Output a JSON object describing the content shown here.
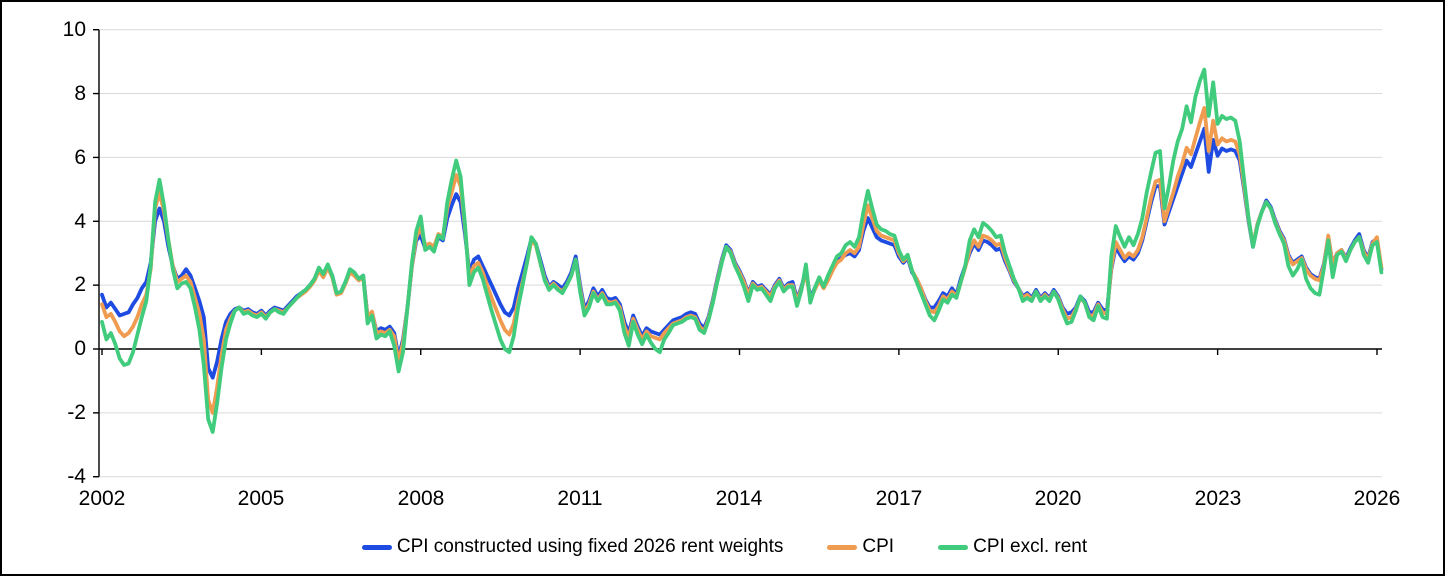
{
  "chart_data": {
    "type": "line",
    "title": "",
    "xlabel": "",
    "ylabel": "",
    "ylim": [
      -4,
      10
    ],
    "xlim": [
      2002,
      2026.4
    ],
    "grid": "horizontal-only",
    "grid_color": "#D9D9D9",
    "zero_axis_color": "#000000",
    "background": "#FFFFFF",
    "legend_position": "bottom-center",
    "ytick_labels": [
      "10",
      "8",
      "6",
      "4",
      "2",
      "0",
      "-2",
      "-4"
    ],
    "ytick_values": [
      10,
      8,
      6,
      4,
      2,
      0,
      -2,
      -4
    ],
    "xtick_labels": [
      "2002",
      "2005",
      "2008",
      "2011",
      "2014",
      "2017",
      "2020",
      "2023",
      "2026"
    ],
    "xtick_values": [
      2002,
      2005,
      2008,
      2011,
      2014,
      2017,
      2020,
      2023,
      2026
    ],
    "x_first": 2002.0,
    "x_step_years": 0.08333,
    "x_unit": "monthly, Jan 2002 - Feb 2026, percent year-over-year",
    "series": [
      {
        "name": "CPI constructed using fixed 2026 rent weights",
        "color": "#1E4BE1",
        "values": [
          1.7,
          1.3,
          1.45,
          1.25,
          1.05,
          1.1,
          1.15,
          1.4,
          1.6,
          1.9,
          2.1,
          2.7,
          4.0,
          4.4,
          4.0,
          3.2,
          2.6,
          2.2,
          2.3,
          2.5,
          2.3,
          1.9,
          1.5,
          1.0,
          -0.6,
          -0.9,
          -0.4,
          0.3,
          0.85,
          1.1,
          1.25,
          1.3,
          1.2,
          1.25,
          1.15,
          1.1,
          1.2,
          1.05,
          1.2,
          1.3,
          1.25,
          1.2,
          1.35,
          1.5,
          1.65,
          1.75,
          1.85,
          2.0,
          2.2,
          2.5,
          2.3,
          2.6,
          2.3,
          1.75,
          1.8,
          2.1,
          2.45,
          2.35,
          2.2,
          2.3,
          1.0,
          1.15,
          0.55,
          0.65,
          0.6,
          0.7,
          0.5,
          -0.25,
          0.3,
          1.3,
          2.6,
          3.4,
          3.55,
          3.15,
          3.2,
          3.1,
          3.5,
          3.4,
          4.1,
          4.5,
          4.85,
          4.6,
          3.6,
          2.4,
          2.8,
          2.9,
          2.6,
          2.3,
          2.0,
          1.7,
          1.4,
          1.15,
          1.05,
          1.3,
          1.9,
          2.4,
          2.9,
          3.45,
          3.3,
          2.8,
          2.3,
          1.95,
          2.1,
          2.0,
          1.9,
          2.1,
          2.4,
          2.9,
          2.0,
          1.25,
          1.5,
          1.9,
          1.65,
          1.85,
          1.6,
          1.55,
          1.6,
          1.4,
          0.85,
          0.5,
          1.05,
          0.7,
          0.4,
          0.65,
          0.55,
          0.5,
          0.45,
          0.6,
          0.75,
          0.9,
          0.95,
          1.0,
          1.1,
          1.15,
          1.1,
          0.8,
          0.65,
          1.0,
          1.55,
          2.2,
          2.8,
          3.25,
          3.1,
          2.7,
          2.45,
          2.15,
          1.75,
          2.1,
          1.95,
          2.0,
          1.85,
          1.7,
          2.0,
          2.2,
          1.9,
          2.05,
          2.1,
          1.55,
          1.95,
          2.45,
          1.6,
          1.9,
          2.2,
          1.95,
          2.2,
          2.5,
          2.75,
          2.85,
          2.95,
          3.0,
          2.9,
          3.1,
          3.7,
          4.1,
          3.8,
          3.5,
          3.4,
          3.35,
          3.3,
          3.25,
          2.9,
          2.7,
          2.85,
          2.4,
          2.2,
          1.9,
          1.55,
          1.3,
          1.3,
          1.5,
          1.75,
          1.65,
          1.9,
          1.7,
          2.2,
          2.6,
          3.0,
          3.3,
          3.1,
          3.4,
          3.35,
          3.25,
          3.1,
          3.15,
          2.75,
          2.45,
          2.1,
          1.9,
          1.65,
          1.75,
          1.6,
          1.85,
          1.6,
          1.75,
          1.6,
          1.85,
          1.65,
          1.3,
          1.1,
          1.15,
          1.3,
          1.65,
          1.5,
          1.15,
          1.15,
          1.45,
          1.25,
          1.2,
          2.5,
          3.2,
          2.95,
          2.75,
          2.9,
          2.8,
          3.0,
          3.4,
          4.0,
          4.6,
          5.1,
          5.1,
          3.9,
          4.3,
          4.7,
          5.1,
          5.5,
          5.9,
          5.7,
          6.1,
          6.5,
          6.9,
          5.55,
          6.55,
          6.05,
          6.28,
          6.2,
          6.25,
          6.2,
          5.9,
          5.0,
          4.0,
          3.2,
          3.9,
          4.3,
          4.65,
          4.45,
          4.05,
          3.7,
          3.45,
          2.95,
          2.7,
          2.8,
          2.9,
          2.55,
          2.35,
          2.25,
          2.2,
          2.65,
          3.5,
          2.65,
          3.0,
          3.1,
          2.85,
          3.15,
          3.4,
          3.6,
          3.1,
          2.85,
          3.35,
          3.45,
          2.5
        ]
      },
      {
        "name": "CPI",
        "color": "#EF9B50",
        "values": [
          1.4,
          1.0,
          1.1,
          0.85,
          0.55,
          0.4,
          0.5,
          0.7,
          1.0,
          1.4,
          1.7,
          2.5,
          4.4,
          4.9,
          4.3,
          3.4,
          2.6,
          2.1,
          2.2,
          2.3,
          2.1,
          1.6,
          1.1,
          0.3,
          -1.6,
          -2.0,
          -1.2,
          -0.2,
          0.6,
          0.95,
          1.2,
          1.3,
          1.15,
          1.2,
          1.1,
          1.05,
          1.15,
          1.0,
          1.15,
          1.25,
          1.2,
          1.15,
          1.3,
          1.45,
          1.6,
          1.7,
          1.8,
          1.95,
          2.15,
          2.45,
          2.25,
          2.55,
          2.25,
          1.7,
          1.75,
          2.05,
          2.4,
          2.3,
          2.15,
          2.25,
          1.0,
          1.17,
          0.5,
          0.55,
          0.5,
          0.6,
          0.4,
          -0.4,
          0.2,
          1.3,
          2.6,
          3.5,
          3.8,
          3.25,
          3.3,
          3.2,
          3.6,
          3.5,
          4.4,
          4.9,
          5.45,
          5.1,
          3.8,
          2.2,
          2.6,
          2.7,
          2.4,
          2.0,
          1.6,
          1.25,
          0.9,
          0.6,
          0.45,
          0.8,
          1.5,
          2.1,
          2.7,
          3.4,
          3.25,
          2.7,
          2.2,
          1.9,
          2.05,
          1.9,
          1.8,
          2.0,
          2.3,
          2.8,
          1.9,
          1.15,
          1.4,
          1.8,
          1.55,
          1.75,
          1.5,
          1.45,
          1.5,
          1.3,
          0.7,
          0.35,
          0.95,
          0.6,
          0.3,
          0.55,
          0.4,
          0.35,
          0.3,
          0.5,
          0.65,
          0.8,
          0.85,
          0.9,
          1.0,
          1.05,
          1.0,
          0.7,
          0.55,
          0.95,
          1.5,
          2.15,
          2.75,
          3.2,
          3.05,
          2.65,
          2.4,
          2.1,
          1.7,
          2.05,
          1.9,
          1.95,
          1.8,
          1.65,
          1.95,
          2.15,
          1.85,
          2.0,
          2.0,
          1.5,
          1.9,
          2.4,
          1.55,
          1.85,
          2.15,
          1.9,
          2.15,
          2.45,
          2.7,
          2.8,
          3.0,
          3.1,
          3.0,
          3.2,
          3.9,
          4.5,
          4.1,
          3.7,
          3.55,
          3.5,
          3.45,
          3.4,
          3.0,
          2.75,
          2.9,
          2.45,
          2.2,
          1.9,
          1.5,
          1.2,
          1.15,
          1.35,
          1.65,
          1.55,
          1.8,
          1.65,
          2.1,
          2.55,
          3.1,
          3.4,
          3.2,
          3.55,
          3.5,
          3.4,
          3.25,
          3.3,
          2.85,
          2.5,
          2.15,
          1.9,
          1.6,
          1.7,
          1.55,
          1.8,
          1.55,
          1.7,
          1.55,
          1.8,
          1.6,
          1.25,
          0.95,
          1.0,
          1.25,
          1.6,
          1.45,
          1.05,
          1.05,
          1.4,
          1.15,
          1.1,
          2.55,
          3.35,
          3.1,
          2.85,
          3.0,
          2.9,
          3.1,
          3.5,
          4.1,
          4.75,
          5.25,
          5.3,
          4.0,
          4.45,
          4.9,
          5.4,
          5.8,
          6.3,
          6.1,
          6.6,
          7.1,
          7.55,
          6.2,
          7.15,
          6.4,
          6.6,
          6.5,
          6.55,
          6.5,
          6.1,
          5.1,
          4.05,
          3.25,
          3.9,
          4.3,
          4.6,
          4.4,
          4.0,
          3.65,
          3.4,
          2.9,
          2.65,
          2.75,
          2.85,
          2.5,
          2.3,
          2.2,
          2.15,
          2.6,
          3.55,
          2.6,
          3.0,
          3.1,
          2.8,
          3.1,
          3.35,
          3.5,
          3.05,
          2.8,
          3.3,
          3.5,
          2.55
        ]
      },
      {
        "name": "CPI excl. rent",
        "color": "#41CB7D",
        "values": [
          0.85,
          0.3,
          0.5,
          0.15,
          -0.3,
          -0.5,
          -0.45,
          -0.1,
          0.45,
          1.0,
          1.5,
          2.6,
          4.6,
          5.3,
          4.5,
          3.4,
          2.5,
          1.9,
          2.05,
          2.1,
          1.9,
          1.3,
          0.6,
          -0.5,
          -2.2,
          -2.6,
          -1.7,
          -0.6,
          0.3,
          0.8,
          1.2,
          1.3,
          1.1,
          1.15,
          1.05,
          1.0,
          1.1,
          0.95,
          1.15,
          1.25,
          1.15,
          1.1,
          1.3,
          1.45,
          1.6,
          1.75,
          1.85,
          2.0,
          2.2,
          2.55,
          2.35,
          2.65,
          2.3,
          1.75,
          1.8,
          2.1,
          2.5,
          2.4,
          2.2,
          2.3,
          0.8,
          1.05,
          0.33,
          0.45,
          0.4,
          0.55,
          0.1,
          -0.7,
          -0.1,
          1.3,
          2.7,
          3.7,
          4.15,
          3.1,
          3.2,
          3.05,
          3.55,
          3.45,
          4.6,
          5.3,
          5.9,
          5.4,
          3.9,
          2.0,
          2.4,
          2.55,
          2.2,
          1.7,
          1.2,
          0.75,
          0.3,
          0.0,
          -0.1,
          0.4,
          1.3,
          2.0,
          2.7,
          3.5,
          3.3,
          2.7,
          2.15,
          1.85,
          2.0,
          1.85,
          1.75,
          2.0,
          2.3,
          2.8,
          1.8,
          1.05,
          1.3,
          1.75,
          1.5,
          1.7,
          1.4,
          1.4,
          1.45,
          1.2,
          0.5,
          0.1,
          0.85,
          0.45,
          0.15,
          0.45,
          0.2,
          0.0,
          -0.1,
          0.3,
          0.5,
          0.75,
          0.8,
          0.85,
          0.95,
          1.0,
          0.95,
          0.6,
          0.5,
          0.9,
          1.45,
          2.1,
          2.7,
          3.2,
          3.0,
          2.6,
          2.3,
          1.95,
          1.5,
          2.0,
          1.85,
          1.9,
          1.7,
          1.5,
          1.9,
          2.1,
          1.8,
          1.95,
          1.95,
          1.35,
          1.85,
          2.65,
          1.45,
          1.9,
          2.25,
          1.95,
          2.3,
          2.6,
          2.9,
          3.0,
          3.25,
          3.35,
          3.2,
          3.5,
          4.3,
          4.95,
          4.4,
          3.9,
          3.75,
          3.7,
          3.6,
          3.55,
          3.1,
          2.8,
          2.95,
          2.45,
          2.1,
          1.75,
          1.4,
          1.05,
          0.9,
          1.2,
          1.55,
          1.45,
          1.7,
          1.6,
          2.1,
          2.6,
          3.4,
          3.75,
          3.5,
          3.95,
          3.85,
          3.7,
          3.5,
          3.55,
          3.0,
          2.6,
          2.2,
          1.9,
          1.5,
          1.6,
          1.5,
          1.8,
          1.5,
          1.65,
          1.5,
          1.8,
          1.55,
          1.15,
          0.8,
          0.85,
          1.2,
          1.65,
          1.45,
          1.0,
          0.9,
          1.35,
          1.0,
          0.95,
          2.9,
          3.85,
          3.5,
          3.2,
          3.5,
          3.25,
          3.6,
          4.1,
          4.9,
          5.55,
          6.15,
          6.2,
          4.4,
          5.1,
          5.9,
          6.5,
          6.9,
          7.6,
          7.1,
          7.9,
          8.4,
          8.75,
          7.3,
          8.35,
          7.05,
          7.3,
          7.2,
          7.25,
          7.15,
          6.5,
          5.3,
          4.1,
          3.2,
          3.85,
          4.3,
          4.6,
          4.4,
          3.95,
          3.6,
          3.3,
          2.6,
          2.3,
          2.5,
          2.8,
          2.2,
          1.9,
          1.75,
          1.7,
          2.5,
          3.4,
          2.25,
          2.95,
          3.05,
          2.75,
          3.1,
          3.35,
          3.5,
          2.95,
          2.7,
          3.25,
          3.35,
          2.4
        ]
      }
    ]
  }
}
